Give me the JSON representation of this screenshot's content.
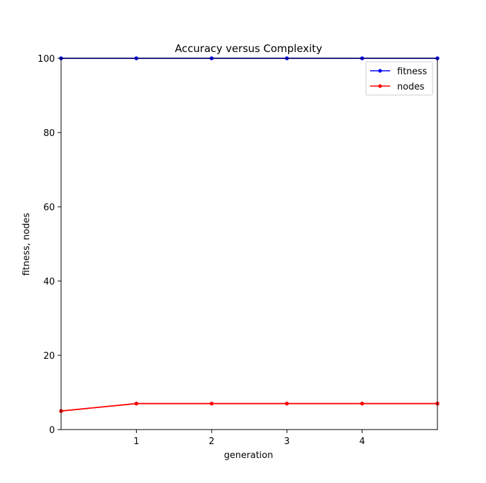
{
  "chart_data": {
    "type": "line",
    "title": "Accuracy versus Complexity",
    "xlabel": "generation",
    "ylabel": "fitness, nodes",
    "x": [
      0,
      1,
      2,
      3,
      4,
      5
    ],
    "xlim": [
      0,
      5
    ],
    "ylim": [
      0,
      100
    ],
    "xticks": [
      1,
      2,
      3,
      4
    ],
    "yticks": [
      0,
      20,
      40,
      60,
      80,
      100
    ],
    "grid": false,
    "legend_position": "top-right",
    "series": [
      {
        "name": "fitness",
        "color": "#0000ff",
        "marker": "dot",
        "values": [
          100,
          100,
          100,
          100,
          100,
          100
        ]
      },
      {
        "name": "nodes",
        "color": "#ff0000",
        "marker": "dot",
        "values": [
          5,
          7,
          7,
          7,
          7,
          7
        ]
      }
    ]
  }
}
